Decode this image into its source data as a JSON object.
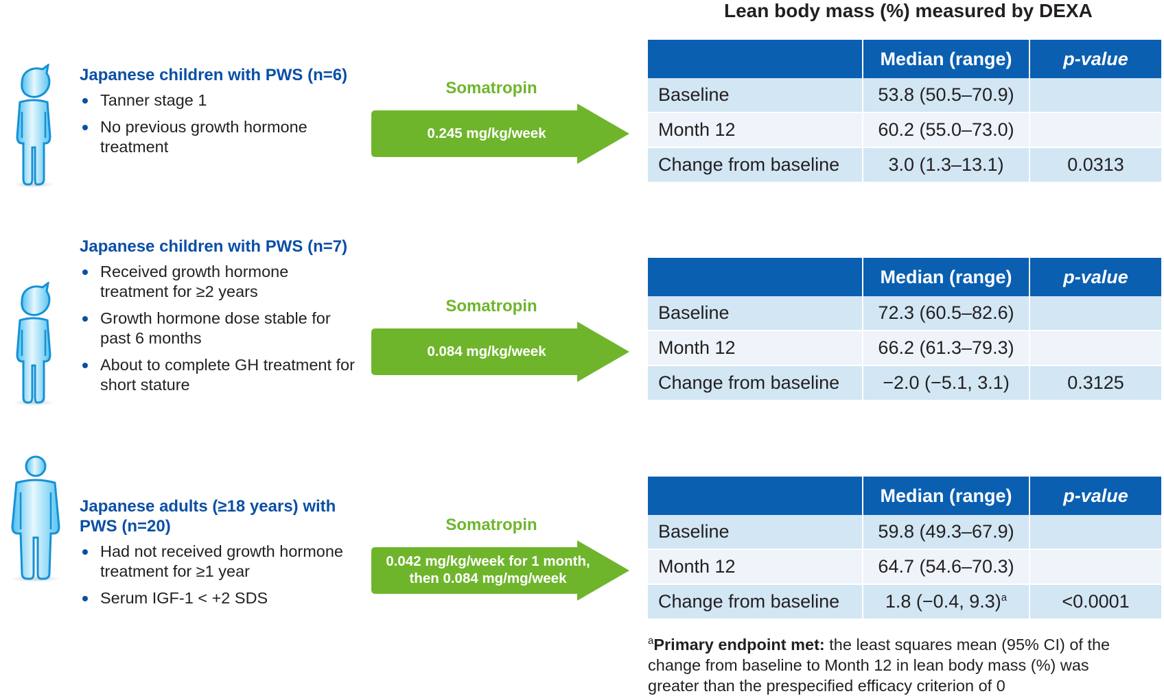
{
  "title": "Lean body mass (%) measured by DEXA",
  "colors": {
    "blue_text": "#0a4fa6",
    "header_blue": "#0a5fb1",
    "green": "#6fb52c",
    "row_dark": "#d2e6f4",
    "row_light": "#eef4fa"
  },
  "groups": [
    {
      "icon": "child-figure-icon",
      "cohort_title": "Japanese children with PWS (n=6)",
      "bullets": [
        "Tanner stage 1",
        "No previous growth hormone treatment"
      ],
      "drug": "Somatropin",
      "dose_lines": [
        "0.245 mg/kg/week"
      ],
      "table": {
        "headers": [
          "",
          "Median (range)",
          "p-value"
        ],
        "rows": [
          {
            "label": "Baseline",
            "median": "53.8 (50.5–70.9)",
            "pvalue": ""
          },
          {
            "label": "Month 12",
            "median": "60.2 (55.0–73.0)",
            "pvalue": ""
          },
          {
            "label": "Change from baseline",
            "median": "3.0 (1.3–13.1)",
            "pvalue": "0.0313"
          }
        ]
      }
    },
    {
      "icon": "child-figure-icon",
      "cohort_title": "Japanese children with PWS (n=7)",
      "bullets": [
        "Received growth hormone treatment for ≥2 years",
        "Growth hormone dose stable for past 6 months",
        "About to complete GH treatment for short stature"
      ],
      "drug": "Somatropin",
      "dose_lines": [
        "0.084 mg/kg/week"
      ],
      "table": {
        "headers": [
          "",
          "Median (range)",
          "p-value"
        ],
        "rows": [
          {
            "label": "Baseline",
            "median": "72.3 (60.5–82.6)",
            "pvalue": ""
          },
          {
            "label": "Month 12",
            "median": "66.2 (61.3–79.3)",
            "pvalue": ""
          },
          {
            "label": "Change from baseline",
            "median": "−2.0 (−5.1, 3.1)",
            "pvalue": "0.3125"
          }
        ]
      }
    },
    {
      "icon": "adult-figure-icon",
      "cohort_title": "Japanese adults (≥18 years) with PWS (n=20)",
      "bullets": [
        "Had not received growth hormone treatment for ≥1 year",
        "Serum IGF-1 < +2 SDS"
      ],
      "drug": "Somatropin",
      "dose_lines": [
        "0.042 mg/kg/week for 1 month,",
        "then 0.084 mg/mg/week"
      ],
      "table": {
        "headers": [
          "",
          "Median (range)",
          "p-value"
        ],
        "rows": [
          {
            "label": "Baseline",
            "median": "59.8 (49.3–67.9)",
            "pvalue": ""
          },
          {
            "label": "Month 12",
            "median": "64.7 (54.6–70.3)",
            "pvalue": ""
          },
          {
            "label": "Change from baseline",
            "median": "1.8 (−0.4, 9.3)",
            "median_sup": "a",
            "pvalue": "<0.0001"
          }
        ]
      }
    }
  ],
  "footnote": {
    "marker": "a",
    "bold": "Primary endpoint met:",
    "text": " the least squares mean (95% CI) of the change from baseline to Month 12 in lean body mass (%) was greater than the prespecified efficacy criterion of 0"
  }
}
